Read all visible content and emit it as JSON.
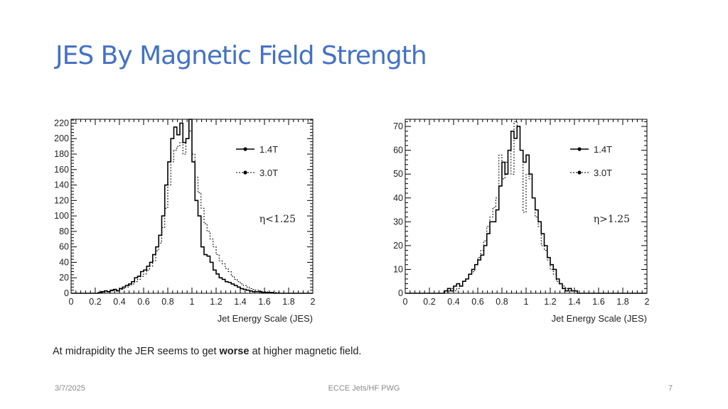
{
  "slide": {
    "title": "JES By Magnetic Field Strength",
    "caption_before": "At midrapidity the JER seems to get ",
    "caption_bold": "worse",
    "caption_after": " at higher magnetic field.",
    "footer_date": "3/7/2025",
    "footer_center": "ECCE Jets/HF PWG",
    "page_number": "7"
  },
  "colors": {
    "title": "#4472c4",
    "histogram": "#000000",
    "axis": "#000000"
  },
  "chart_data": [
    {
      "type": "histogram",
      "title": "",
      "xlabel": "Jet Energy Scale (JES)",
      "ylabel": "",
      "xlim": [
        0,
        2
      ],
      "ylim": [
        0,
        225
      ],
      "xticks": [
        "0",
        "0.2",
        "0.4",
        "0.6",
        "0.8",
        "1",
        "1.2",
        "1.4",
        "1.6",
        "1.8",
        "2"
      ],
      "xtick_values": [
        0,
        0.2,
        0.4,
        0.6,
        0.8,
        1,
        1.2,
        1.4,
        1.6,
        1.8,
        2
      ],
      "yticks": [
        "0",
        "20",
        "40",
        "60",
        "80",
        "100",
        "120",
        "140",
        "160",
        "180",
        "200",
        "220"
      ],
      "ytick_values": [
        0,
        20,
        40,
        60,
        80,
        100,
        120,
        140,
        160,
        180,
        200,
        220
      ],
      "annotation": "η<1.25",
      "legend_position": "top-right",
      "bin_edges_start": 0,
      "bin_width": 0.025,
      "series": [
        {
          "name": "1.4T",
          "style": "solid",
          "values": [
            0,
            0,
            0,
            0,
            0,
            0,
            0,
            0,
            0,
            1,
            2,
            3,
            2,
            4,
            5,
            3,
            6,
            8,
            10,
            12,
            15,
            20,
            22,
            28,
            30,
            35,
            40,
            50,
            60,
            75,
            100,
            140,
            170,
            200,
            215,
            205,
            220,
            195,
            200,
            225,
            170,
            120,
            100,
            60,
            50,
            48,
            40,
            30,
            25,
            20,
            18,
            15,
            14,
            12,
            10,
            8,
            6,
            5,
            4,
            3,
            2,
            2,
            2,
            1,
            1,
            1,
            1,
            0,
            0,
            0,
            0,
            0,
            0,
            0,
            0,
            0,
            0,
            0,
            0,
            0
          ]
        },
        {
          "name": "3.0T",
          "style": "dashed",
          "values": [
            0,
            0,
            0,
            0,
            0,
            0,
            0,
            0,
            0,
            0,
            1,
            2,
            2,
            3,
            4,
            4,
            5,
            6,
            8,
            10,
            12,
            15,
            18,
            22,
            25,
            30,
            35,
            42,
            55,
            65,
            85,
            110,
            140,
            170,
            185,
            190,
            195,
            180,
            200,
            210,
            180,
            150,
            130,
            110,
            90,
            80,
            70,
            60,
            50,
            42,
            38,
            32,
            28,
            22,
            18,
            15,
            12,
            10,
            8,
            6,
            5,
            4,
            3,
            2,
            2,
            1,
            1,
            1,
            1,
            0,
            0,
            0,
            0,
            0,
            0,
            0,
            0,
            0,
            0,
            0
          ]
        }
      ]
    },
    {
      "type": "histogram",
      "title": "",
      "xlabel": "Jet Energy Scale (JES)",
      "ylabel": "",
      "xlim": [
        0,
        2
      ],
      "ylim": [
        0,
        73
      ],
      "xticks": [
        "0",
        "0.2",
        "0.4",
        "0.6",
        "0.8",
        "1",
        "1.2",
        "1.4",
        "1.6",
        "1.8",
        "2"
      ],
      "xtick_values": [
        0,
        0.2,
        0.4,
        0.6,
        0.8,
        1,
        1.2,
        1.4,
        1.6,
        1.8,
        2
      ],
      "yticks": [
        "0",
        "10",
        "20",
        "30",
        "40",
        "50",
        "60",
        "70"
      ],
      "ytick_values": [
        0,
        10,
        20,
        30,
        40,
        50,
        60,
        70
      ],
      "annotation": "η>1.25",
      "legend_position": "top-right",
      "bin_edges_start": 0,
      "bin_width": 0.025,
      "series": [
        {
          "name": "1.4T",
          "style": "solid",
          "values": [
            0,
            0,
            0,
            0,
            0,
            0,
            0,
            0,
            0,
            0,
            0,
            0,
            0,
            1,
            2,
            1,
            3,
            4,
            3,
            5,
            6,
            8,
            10,
            12,
            14,
            16,
            20,
            25,
            30,
            30,
            35,
            45,
            55,
            50,
            60,
            68,
            65,
            70,
            60,
            55,
            58,
            50,
            40,
            35,
            30,
            25,
            20,
            15,
            12,
            10,
            6,
            4,
            2,
            1,
            2,
            1,
            1,
            0,
            0,
            0,
            0,
            0,
            0,
            0,
            0,
            0,
            0,
            0,
            0,
            0,
            0,
            0,
            0,
            0,
            0,
            0,
            0,
            0,
            0,
            0
          ]
        },
        {
          "name": "3.0T",
          "style": "dashed",
          "values": [
            0,
            0,
            0,
            0,
            0,
            0,
            0,
            0,
            0,
            0,
            0,
            0,
            0,
            0,
            1,
            2,
            1,
            2,
            3,
            5,
            6,
            8,
            9,
            12,
            15,
            18,
            22,
            28,
            32,
            36,
            40,
            58,
            48,
            55,
            60,
            50,
            72,
            70,
            60,
            34,
            50,
            48,
            40,
            32,
            28,
            20,
            18,
            14,
            10,
            8,
            5,
            4,
            3,
            2,
            1,
            1,
            1,
            0,
            0,
            0,
            0,
            0,
            0,
            0,
            0,
            0,
            0,
            0,
            0,
            0,
            0,
            0,
            0,
            0,
            0,
            0,
            0,
            0,
            0,
            0
          ]
        }
      ]
    }
  ]
}
